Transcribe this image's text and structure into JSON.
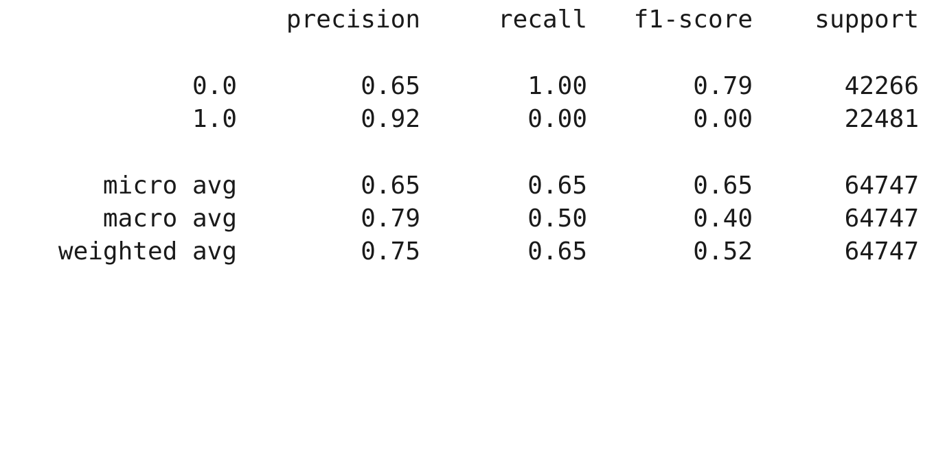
{
  "report": {
    "header": [
      "precision",
      "recall",
      "f1-score",
      "support"
    ],
    "class_rows": [
      {
        "label": "0.0",
        "precision": "0.65",
        "recall": "1.00",
        "f1": "0.79",
        "support": "42266"
      },
      {
        "label": "1.0",
        "precision": "0.92",
        "recall": "0.00",
        "f1": "0.00",
        "support": "22481"
      }
    ],
    "avg_rows": [
      {
        "label": "micro avg",
        "precision": "0.65",
        "recall": "0.65",
        "f1": "0.65",
        "support": "64747"
      },
      {
        "label": "macro avg",
        "precision": "0.79",
        "recall": "0.50",
        "f1": "0.40",
        "support": "64747"
      },
      {
        "label": "weighted avg",
        "precision": "0.75",
        "recall": "0.65",
        "f1": "0.52",
        "support": "64747"
      }
    ]
  }
}
